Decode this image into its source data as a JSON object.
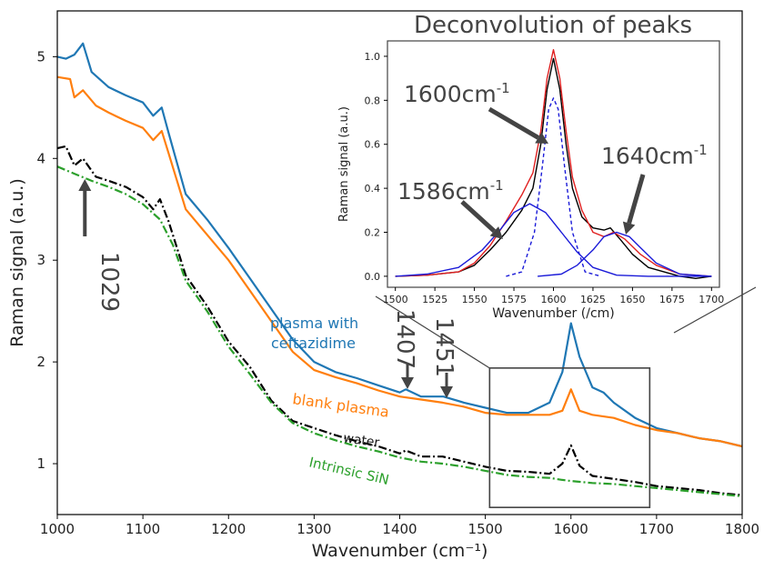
{
  "chart_data": [
    {
      "type": "line",
      "xlabel": "Wavenumber (cm⁻¹)",
      "ylabel": "Raman signal (a.u.)",
      "xlim": [
        1000,
        1800
      ],
      "ylim": [
        0.5,
        5.45
      ],
      "xticks": [
        "1000",
        "1100",
        "1200",
        "1300",
        "1400",
        "1500",
        "1600",
        "1700",
        "1800"
      ],
      "yticks": [
        "1",
        "2",
        "3",
        "4",
        "5"
      ],
      "series": [
        {
          "name": "plasma with ceftazidime",
          "color": "#1f77b4",
          "style": "solid",
          "points": [
            [
              1000,
              5.0
            ],
            [
              1010,
              4.98
            ],
            [
              1020,
              5.02
            ],
            [
              1030,
              5.13
            ],
            [
              1040,
              4.85
            ],
            [
              1060,
              4.7
            ],
            [
              1080,
              4.62
            ],
            [
              1100,
              4.55
            ],
            [
              1112,
              4.42
            ],
            [
              1122,
              4.5
            ],
            [
              1130,
              4.25
            ],
            [
              1150,
              3.65
            ],
            [
              1175,
              3.4
            ],
            [
              1200,
              3.12
            ],
            [
              1225,
              2.82
            ],
            [
              1250,
              2.52
            ],
            [
              1275,
              2.22
            ],
            [
              1300,
              2.0
            ],
            [
              1325,
              1.9
            ],
            [
              1350,
              1.84
            ],
            [
              1375,
              1.77
            ],
            [
              1400,
              1.7
            ],
            [
              1407,
              1.73
            ],
            [
              1425,
              1.66
            ],
            [
              1451,
              1.66
            ],
            [
              1475,
              1.6
            ],
            [
              1500,
              1.55
            ],
            [
              1525,
              1.5
            ],
            [
              1550,
              1.5
            ],
            [
              1575,
              1.6
            ],
            [
              1590,
              1.9
            ],
            [
              1600,
              2.38
            ],
            [
              1610,
              2.05
            ],
            [
              1625,
              1.75
            ],
            [
              1638,
              1.7
            ],
            [
              1650,
              1.6
            ],
            [
              1675,
              1.45
            ],
            [
              1700,
              1.35
            ],
            [
              1725,
              1.3
            ],
            [
              1750,
              1.25
            ],
            [
              1775,
              1.22
            ],
            [
              1800,
              1.17
            ]
          ]
        },
        {
          "name": "blank plasma",
          "color": "#ff7f0e",
          "style": "solid",
          "points": [
            [
              1000,
              4.8
            ],
            [
              1015,
              4.78
            ],
            [
              1020,
              4.6
            ],
            [
              1030,
              4.67
            ],
            [
              1045,
              4.52
            ],
            [
              1060,
              4.45
            ],
            [
              1080,
              4.37
            ],
            [
              1100,
              4.3
            ],
            [
              1112,
              4.18
            ],
            [
              1122,
              4.27
            ],
            [
              1130,
              4.05
            ],
            [
              1150,
              3.5
            ],
            [
              1175,
              3.25
            ],
            [
              1200,
              3.0
            ],
            [
              1225,
              2.7
            ],
            [
              1250,
              2.4
            ],
            [
              1275,
              2.1
            ],
            [
              1300,
              1.92
            ],
            [
              1325,
              1.85
            ],
            [
              1350,
              1.79
            ],
            [
              1375,
              1.72
            ],
            [
              1400,
              1.66
            ],
            [
              1425,
              1.63
            ],
            [
              1450,
              1.6
            ],
            [
              1475,
              1.56
            ],
            [
              1500,
              1.5
            ],
            [
              1525,
              1.48
            ],
            [
              1550,
              1.48
            ],
            [
              1575,
              1.48
            ],
            [
              1590,
              1.52
            ],
            [
              1600,
              1.73
            ],
            [
              1610,
              1.52
            ],
            [
              1625,
              1.48
            ],
            [
              1650,
              1.45
            ],
            [
              1675,
              1.38
            ],
            [
              1700,
              1.33
            ],
            [
              1725,
              1.3
            ],
            [
              1750,
              1.25
            ],
            [
              1775,
              1.22
            ],
            [
              1800,
              1.17
            ]
          ]
        },
        {
          "name": "water",
          "color": "#000000",
          "style": "dashdot",
          "points": [
            [
              1000,
              4.1
            ],
            [
              1010,
              4.12
            ],
            [
              1020,
              3.93
            ],
            [
              1030,
              4.0
            ],
            [
              1045,
              3.82
            ],
            [
              1060,
              3.78
            ],
            [
              1080,
              3.72
            ],
            [
              1100,
              3.62
            ],
            [
              1112,
              3.5
            ],
            [
              1120,
              3.6
            ],
            [
              1130,
              3.38
            ],
            [
              1150,
              2.85
            ],
            [
              1175,
              2.55
            ],
            [
              1200,
              2.2
            ],
            [
              1225,
              1.95
            ],
            [
              1250,
              1.62
            ],
            [
              1275,
              1.42
            ],
            [
              1300,
              1.35
            ],
            [
              1325,
              1.28
            ],
            [
              1350,
              1.22
            ],
            [
              1375,
              1.17
            ],
            [
              1400,
              1.1
            ],
            [
              1407,
              1.13
            ],
            [
              1425,
              1.07
            ],
            [
              1450,
              1.07
            ],
            [
              1475,
              1.02
            ],
            [
              1500,
              0.97
            ],
            [
              1525,
              0.93
            ],
            [
              1550,
              0.92
            ],
            [
              1575,
              0.9
            ],
            [
              1590,
              1.0
            ],
            [
              1600,
              1.18
            ],
            [
              1610,
              0.98
            ],
            [
              1625,
              0.88
            ],
            [
              1650,
              0.85
            ],
            [
              1675,
              0.82
            ],
            [
              1700,
              0.78
            ],
            [
              1725,
              0.76
            ],
            [
              1750,
              0.74
            ],
            [
              1775,
              0.71
            ],
            [
              1800,
              0.69
            ]
          ]
        },
        {
          "name": "Intrinsic SiN",
          "color": "#2ca02c",
          "style": "dashdot",
          "points": [
            [
              1000,
              3.92
            ],
            [
              1020,
              3.85
            ],
            [
              1040,
              3.78
            ],
            [
              1060,
              3.72
            ],
            [
              1080,
              3.65
            ],
            [
              1100,
              3.55
            ],
            [
              1120,
              3.4
            ],
            [
              1135,
              3.15
            ],
            [
              1150,
              2.8
            ],
            [
              1175,
              2.5
            ],
            [
              1200,
              2.15
            ],
            [
              1225,
              1.88
            ],
            [
              1250,
              1.6
            ],
            [
              1275,
              1.4
            ],
            [
              1300,
              1.3
            ],
            [
              1325,
              1.23
            ],
            [
              1350,
              1.17
            ],
            [
              1375,
              1.12
            ],
            [
              1400,
              1.06
            ],
            [
              1425,
              1.02
            ],
            [
              1450,
              1.0
            ],
            [
              1475,
              0.97
            ],
            [
              1500,
              0.93
            ],
            [
              1525,
              0.89
            ],
            [
              1550,
              0.87
            ],
            [
              1575,
              0.86
            ],
            [
              1590,
              0.84
            ],
            [
              1600,
              0.83
            ],
            [
              1625,
              0.81
            ],
            [
              1650,
              0.8
            ],
            [
              1675,
              0.78
            ],
            [
              1700,
              0.76
            ],
            [
              1725,
              0.74
            ],
            [
              1750,
              0.72
            ],
            [
              1775,
              0.7
            ],
            [
              1800,
              0.68
            ]
          ]
        }
      ],
      "series_labels": [
        "plasma with\nceftazidime",
        "blank plasma",
        "water",
        "Intrinsic SiN"
      ],
      "annotations": [
        {
          "text": "1029",
          "x": 1029,
          "direction": "up"
        },
        {
          "text": "1407",
          "x": 1407,
          "direction": "down"
        },
        {
          "text": "1451",
          "x": 1451,
          "direction": "down"
        }
      ],
      "zoom_box": {
        "x": [
          1505,
          1692
        ],
        "y": [
          0.57,
          1.94
        ]
      }
    },
    {
      "type": "line",
      "title": "Deconvolution of peaks",
      "xlabel": "Wavenumber (/cm)",
      "ylabel": "Raman signal (a.u.)",
      "xlim": [
        1495,
        1705
      ],
      "ylim": [
        -0.05,
        1.07
      ],
      "xticks": [
        "1500",
        "1525",
        "1550",
        "1575",
        "1600",
        "1625",
        "1650",
        "1675",
        "1700"
      ],
      "yticks": [
        "0.0",
        "0.2",
        "0.4",
        "0.6",
        "0.8",
        "1.0"
      ],
      "series": [
        {
          "color": "#000000",
          "style": "solid",
          "points": [
            [
              1500,
              0.0
            ],
            [
              1520,
              0.005
            ],
            [
              1540,
              0.02
            ],
            [
              1550,
              0.05
            ],
            [
              1560,
              0.12
            ],
            [
              1570,
              0.2
            ],
            [
              1580,
              0.3
            ],
            [
              1587,
              0.4
            ],
            [
              1592,
              0.6
            ],
            [
              1596,
              0.85
            ],
            [
              1600,
              0.99
            ],
            [
              1604,
              0.85
            ],
            [
              1608,
              0.6
            ],
            [
              1612,
              0.4
            ],
            [
              1618,
              0.27
            ],
            [
              1625,
              0.22
            ],
            [
              1632,
              0.21
            ],
            [
              1636,
              0.22
            ],
            [
              1642,
              0.17
            ],
            [
              1650,
              0.1
            ],
            [
              1660,
              0.04
            ],
            [
              1670,
              0.02
            ],
            [
              1680,
              0.0
            ],
            [
              1690,
              -0.01
            ],
            [
              1700,
              0.0
            ]
          ]
        },
        {
          "color": "#e02020",
          "style": "solid",
          "points": [
            [
              1500,
              0.0
            ],
            [
              1520,
              0.005
            ],
            [
              1540,
              0.02
            ],
            [
              1550,
              0.06
            ],
            [
              1560,
              0.14
            ],
            [
              1570,
              0.25
            ],
            [
              1580,
              0.37
            ],
            [
              1587,
              0.47
            ],
            [
              1592,
              0.66
            ],
            [
              1596,
              0.9
            ],
            [
              1600,
              1.03
            ],
            [
              1604,
              0.9
            ],
            [
              1608,
              0.66
            ],
            [
              1612,
              0.45
            ],
            [
              1618,
              0.3
            ],
            [
              1625,
              0.2
            ],
            [
              1632,
              0.18
            ],
            [
              1638,
              0.2
            ],
            [
              1645,
              0.17
            ],
            [
              1655,
              0.1
            ],
            [
              1665,
              0.05
            ],
            [
              1680,
              0.01
            ],
            [
              1700,
              0.0
            ]
          ]
        },
        {
          "color": "#1a1ad8",
          "style": "solid",
          "points": [
            [
              1500,
              0.0
            ],
            [
              1520,
              0.01
            ],
            [
              1540,
              0.04
            ],
            [
              1555,
              0.12
            ],
            [
              1565,
              0.2
            ],
            [
              1575,
              0.29
            ],
            [
              1585,
              0.33
            ],
            [
              1595,
              0.29
            ],
            [
              1605,
              0.2
            ],
            [
              1615,
              0.11
            ],
            [
              1625,
              0.04
            ],
            [
              1640,
              0.005
            ],
            [
              1660,
              0.0
            ],
            [
              1700,
              0.0
            ]
          ]
        },
        {
          "color": "#1a1ad8",
          "style": "dashed",
          "points": [
            [
              1570,
              0.0
            ],
            [
              1580,
              0.02
            ],
            [
              1588,
              0.2
            ],
            [
              1593,
              0.5
            ],
            [
              1597,
              0.76
            ],
            [
              1600,
              0.81
            ],
            [
              1603,
              0.76
            ],
            [
              1607,
              0.5
            ],
            [
              1612,
              0.2
            ],
            [
              1620,
              0.02
            ],
            [
              1630,
              0.0
            ]
          ]
        },
        {
          "color": "#1a1ad8",
          "style": "solid",
          "points": [
            [
              1590,
              0.0
            ],
            [
              1605,
              0.01
            ],
            [
              1615,
              0.05
            ],
            [
              1625,
              0.12
            ],
            [
              1632,
              0.18
            ],
            [
              1640,
              0.2
            ],
            [
              1648,
              0.18
            ],
            [
              1655,
              0.13
            ],
            [
              1665,
              0.06
            ],
            [
              1680,
              0.01
            ],
            [
              1700,
              0.0
            ]
          ]
        }
      ],
      "annotations": [
        {
          "text": "1600cm",
          "sup": "-1",
          "x": 1600
        },
        {
          "text": "1586cm",
          "sup": "-1",
          "x": 1586
        },
        {
          "text": "1640cm",
          "sup": "-1",
          "x": 1640
        }
      ]
    }
  ]
}
